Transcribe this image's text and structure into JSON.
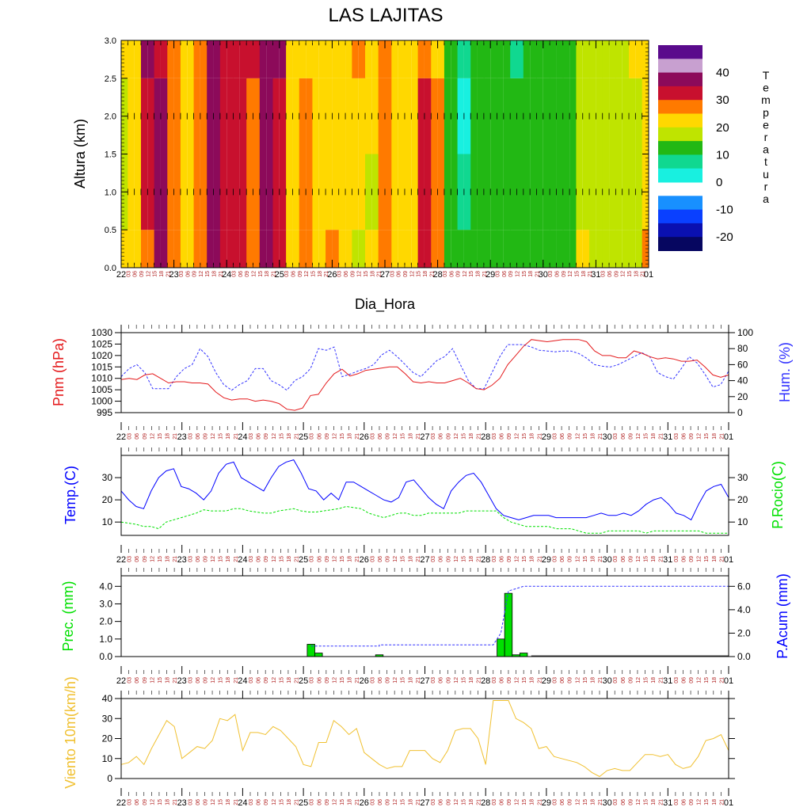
{
  "chart_data": [
    {
      "type": "heatmap",
      "title": "LAS LAJITAS",
      "ylabel": "Altura (km)",
      "xlabel": "Dia_Hora",
      "ylim": [
        0,
        3.0
      ],
      "y_ticks": [
        "0.0",
        "0.5",
        "1.0",
        "1.5",
        "2.0",
        "2.5",
        "3.0"
      ],
      "colorbar_title": "Temperatura",
      "colorbar_ticks": [
        "40",
        "30",
        "20",
        "10",
        "0",
        "-10",
        "-20"
      ],
      "colors": [
        "#5a0a8c",
        "#c8a0d0",
        "#8c0a5a",
        "#c8102e",
        "#ff7a00",
        "#ffd800",
        "#bfe400",
        "#22b814",
        "#10d890",
        "#18f0e0",
        "#ffffff",
        "#1890ff",
        "#0a40ff",
        "#0a10b0",
        "#060660"
      ],
      "columns": [
        {
          "day": 22.0,
          "temps": [
            24,
            20,
            20,
            24
          ]
        },
        {
          "day": 22.25,
          "temps": [
            24,
            24,
            24,
            24
          ]
        },
        {
          "day": 22.5,
          "temps": [
            28,
            32,
            33,
            34
          ]
        },
        {
          "day": 22.75,
          "temps": [
            34,
            34,
            34,
            33
          ]
        },
        {
          "day": 23.0,
          "temps": [
            28,
            27,
            27,
            28
          ]
        },
        {
          "day": 23.25,
          "temps": [
            24,
            24,
            24,
            24
          ]
        },
        {
          "day": 23.5,
          "temps": [
            28,
            28,
            28,
            28
          ]
        },
        {
          "day": 23.75,
          "temps": [
            36,
            37,
            36,
            34
          ]
        },
        {
          "day": 24.0,
          "temps": [
            32,
            32,
            32,
            33
          ]
        },
        {
          "day": 24.25,
          "temps": [
            30,
            30,
            30,
            30
          ]
        },
        {
          "day": 24.5,
          "temps": [
            28,
            28,
            28,
            30
          ]
        },
        {
          "day": 24.75,
          "temps": [
            36,
            36,
            36,
            37
          ]
        },
        {
          "day": 25.0,
          "temps": [
            32,
            31,
            32,
            35
          ]
        },
        {
          "day": 25.25,
          "temps": [
            24,
            24,
            24,
            24
          ]
        },
        {
          "day": 25.5,
          "temps": [
            28,
            29,
            28,
            23
          ]
        },
        {
          "day": 25.75,
          "temps": [
            24,
            24,
            23,
            23
          ]
        },
        {
          "day": 26.0,
          "temps": [
            26,
            24,
            25,
            25
          ]
        },
        {
          "day": 26.25,
          "temps": [
            24,
            24,
            24,
            24
          ]
        },
        {
          "day": 26.5,
          "temps": [
            21,
            22,
            24,
            28
          ]
        },
        {
          "day": 26.75,
          "temps": [
            22,
            20,
            22,
            22
          ]
        },
        {
          "day": 27.0,
          "temps": [
            28,
            26,
            27,
            28
          ]
        },
        {
          "day": 27.25,
          "temps": [
            23,
            22,
            22,
            23
          ]
        },
        {
          "day": 27.5,
          "temps": [
            24,
            24,
            24,
            24
          ]
        },
        {
          "day": 27.75,
          "temps": [
            31,
            30,
            31,
            28
          ]
        },
        {
          "day": 28.0,
          "temps": [
            27,
            27,
            26,
            25
          ]
        },
        {
          "day": 28.25,
          "temps": [
            16,
            15,
            14,
            14
          ]
        },
        {
          "day": 28.5,
          "temps": [
            12,
            11,
            5,
            10
          ]
        },
        {
          "day": 28.75,
          "temps": [
            12,
            12,
            12,
            12
          ]
        },
        {
          "day": 29.0,
          "temps": [
            12,
            12,
            12,
            12
          ]
        },
        {
          "day": 29.25,
          "temps": [
            13,
            13,
            12,
            13
          ]
        },
        {
          "day": 29.5,
          "temps": [
            12,
            12,
            12,
            10
          ]
        },
        {
          "day": 29.75,
          "temps": [
            12,
            12,
            12,
            12
          ]
        },
        {
          "day": 30.0,
          "temps": [
            12,
            12,
            12,
            12
          ]
        },
        {
          "day": 30.25,
          "temps": [
            12,
            12,
            12,
            12
          ]
        },
        {
          "day": 30.5,
          "temps": [
            15,
            15,
            15,
            15
          ]
        },
        {
          "day": 30.75,
          "temps": [
            24,
            18,
            18,
            18
          ]
        },
        {
          "day": 31.0,
          "temps": [
            18,
            18,
            18,
            18
          ]
        },
        {
          "day": 31.25,
          "temps": [
            18,
            18,
            18,
            18
          ]
        },
        {
          "day": 31.5,
          "temps": [
            18,
            18,
            18,
            18
          ]
        },
        {
          "day": 31.75,
          "temps": [
            20,
            20,
            20,
            22
          ]
        },
        {
          "day": 32.0,
          "temps": [
            28,
            24,
            22,
            22
          ]
        }
      ]
    },
    {
      "type": "line",
      "ylabel_left": "Pnm (hPa)",
      "ylabel_right": "Hum. (%)",
      "ylim_left": [
        995,
        1030
      ],
      "ylim_right": [
        0,
        100
      ],
      "y_ticks_left": [
        "995",
        "1000",
        "1005",
        "1010",
        "1015",
        "1020",
        "1025",
        "1030"
      ],
      "y_ticks_right": [
        "0",
        "20",
        "40",
        "60",
        "80",
        "100"
      ],
      "color_left": "#e41a1c",
      "color_right": "#3333ff",
      "series": [
        {
          "axis": "left",
          "values": [
            1009.5,
            1010,
            1009.5,
            1011.5,
            1012,
            1010,
            1008,
            1008.5,
            1008.5,
            1008,
            1008,
            1007.5,
            1004,
            1001.5,
            1000.5,
            1001,
            1001,
            1000,
            1000.5,
            1000,
            999,
            996.5,
            996,
            997,
            1002.5,
            1003,
            1008,
            1012,
            1014,
            1011,
            1012,
            1013.5,
            1014,
            1014.5,
            1015,
            1015,
            1012,
            1008.5,
            1008,
            1008.5,
            1008,
            1008,
            1009,
            1010,
            1008,
            1005.5,
            1005,
            1007,
            1010,
            1016,
            1020,
            1024,
            1027,
            1026.5,
            1026,
            1026.5,
            1027,
            1027,
            1027,
            1026,
            1022,
            1020,
            1020,
            1019,
            1019,
            1022,
            1021,
            1019.5,
            1018.5,
            1019,
            1018.5,
            1017.5,
            1017.5,
            1018,
            1015,
            1011.5,
            1010.5,
            1011.5
          ]
        },
        {
          "axis": "right",
          "values": [
            45,
            55,
            60,
            50,
            30,
            30,
            30,
            45,
            55,
            60,
            80,
            70,
            50,
            35,
            28,
            35,
            40,
            55,
            55,
            40,
            35,
            28,
            40,
            45,
            55,
            80,
            78,
            82,
            45,
            48,
            52,
            55,
            60,
            72,
            78,
            70,
            60,
            50,
            45,
            55,
            65,
            70,
            80,
            60,
            40,
            30,
            30,
            50,
            70,
            85,
            85,
            85,
            82,
            78,
            77,
            76,
            77,
            77,
            74,
            68,
            60,
            58,
            57,
            60,
            65,
            70,
            75,
            70,
            50,
            45,
            42,
            55,
            70,
            62,
            48,
            32,
            35,
            52
          ]
        }
      ]
    },
    {
      "type": "line",
      "ylabel_left": "Temp.(C)",
      "ylabel_right": "P.Rocio(C)",
      "ylim": [
        4,
        40
      ],
      "y_ticks": [
        "10",
        "20",
        "30"
      ],
      "color_left": "#0000ff",
      "color_right": "#00e000",
      "series": [
        {
          "axis": "left",
          "values": [
            24,
            20,
            17,
            16,
            24,
            30,
            33,
            34,
            26,
            25,
            23,
            20,
            24,
            32,
            36,
            37,
            30,
            28,
            26,
            24,
            30,
            35,
            37,
            38,
            32,
            25,
            24,
            20,
            23,
            20,
            28,
            28,
            26,
            24,
            22,
            20,
            19,
            21,
            28,
            29,
            25,
            21,
            18,
            16,
            24,
            28,
            31,
            32,
            28,
            22,
            16,
            13,
            12,
            11,
            12,
            13,
            13,
            13,
            12,
            12,
            12,
            12,
            12,
            13,
            14,
            13,
            13,
            14,
            13,
            15,
            18,
            20,
            21,
            18,
            14,
            13,
            11,
            18,
            24,
            26,
            27,
            21
          ]
        },
        {
          "axis": "right",
          "values": [
            10,
            9.5,
            9,
            8,
            8,
            7,
            10,
            11,
            12,
            13,
            14,
            15.5,
            15,
            15,
            15,
            16,
            16,
            15,
            14.5,
            14,
            14,
            15,
            15.5,
            16,
            15,
            14.5,
            14.5,
            15,
            15.5,
            16,
            17,
            16.5,
            16,
            14,
            13,
            12,
            13,
            14,
            14,
            13,
            13,
            14,
            14,
            14,
            14,
            14,
            15,
            15,
            15,
            15,
            15,
            12,
            10,
            9,
            8,
            8,
            8,
            8,
            7,
            7,
            7,
            6,
            5,
            5,
            5,
            6,
            6,
            6,
            6,
            6,
            5,
            6,
            6,
            6,
            6,
            6,
            6,
            6,
            5,
            5,
            5,
            5
          ]
        }
      ]
    },
    {
      "type": "bar",
      "ylabel_left": "Prec. (mm)",
      "ylabel_right": "P.Acum (mm)",
      "ylim_left": [
        0,
        4.6
      ],
      "ylim_right": [
        0,
        6.9
      ],
      "y_ticks_left": [
        "0.0",
        "1.0",
        "2.0",
        "3.0",
        "4.0"
      ],
      "y_ticks_right": [
        "0.0",
        "2.0",
        "4.0",
        "6.0"
      ],
      "bar_color": "#00e000",
      "acc_color": "#3333ff",
      "bars": [
        {
          "day": 25.125,
          "value": 0.7
        },
        {
          "day": 25.25,
          "value": 0.2
        },
        {
          "day": 26.25,
          "value": 0.1
        },
        {
          "day": 28.25,
          "value": 1.0
        },
        {
          "day": 28.375,
          "value": 3.6
        },
        {
          "day": 28.5,
          "value": 0.1
        },
        {
          "day": 28.625,
          "value": 0.2
        }
      ],
      "accum": [
        [
          25.125,
          0.9
        ],
        [
          26.25,
          0.9
        ],
        [
          26.25,
          1.0
        ],
        [
          28.125,
          1.0
        ],
        [
          28.25,
          2.0
        ],
        [
          28.375,
          5.6
        ],
        [
          28.5,
          5.8
        ],
        [
          28.625,
          6.0
        ],
        [
          32.0,
          6.0
        ]
      ]
    },
    {
      "type": "line",
      "ylabel": "Viento 10m(km/h)",
      "ylim": [
        0,
        40
      ],
      "y_ticks": [
        "0",
        "10",
        "20",
        "30",
        "40"
      ],
      "color": "#f0c030",
      "series": [
        {
          "values": [
            7,
            8,
            11,
            7,
            15,
            22,
            29,
            26,
            10,
            13,
            16,
            15,
            19,
            30,
            29,
            32,
            14,
            23,
            23,
            22,
            26,
            24,
            20,
            16,
            7,
            6,
            18,
            18,
            29,
            26,
            22,
            25,
            13,
            10,
            7,
            5,
            6,
            6,
            14,
            14,
            14,
            10,
            8,
            14,
            24,
            25,
            25,
            20,
            7,
            39,
            39,
            39,
            30,
            28,
            25,
            15,
            16,
            11,
            10,
            9,
            8,
            6,
            3,
            1,
            4,
            5,
            4,
            4,
            8,
            12,
            12,
            11,
            12,
            7,
            5,
            6,
            11,
            19,
            20,
            22,
            14
          ]
        }
      ]
    }
  ],
  "x_axis": {
    "day_labels": [
      "22",
      "23",
      "24",
      "25",
      "26",
      "27",
      "28",
      "29",
      "30",
      "31",
      "01"
    ],
    "hour_labels": [
      "03",
      "06",
      "09",
      "12",
      "15",
      "18",
      "21"
    ]
  }
}
